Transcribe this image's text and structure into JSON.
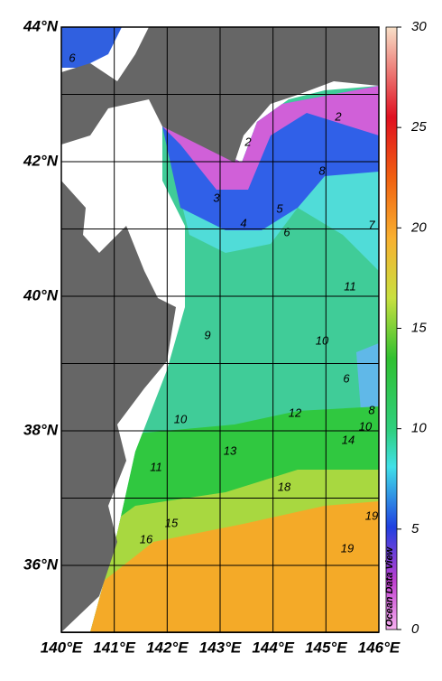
{
  "map": {
    "lat_labels": [
      "44°N",
      "42°N",
      "40°N",
      "38°N",
      "36°N"
    ],
    "lon_labels": [
      "140°E",
      "141°E",
      "142°E",
      "143°E",
      "144°E",
      "145°E",
      "146°E"
    ],
    "contour_labels": [
      "6",
      "2",
      "2",
      "3",
      "4",
      "5",
      "6",
      "7",
      "8",
      "9",
      "11",
      "10",
      "6",
      "8",
      "10",
      "12",
      "10",
      "13",
      "14",
      "11",
      "15",
      "16",
      "18",
      "19",
      "19"
    ],
    "credit": "Ocean Data View"
  },
  "colorbar": {
    "range": [
      0,
      30
    ],
    "ticks": [
      0,
      5,
      10,
      15,
      20,
      25,
      30
    ]
  }
}
